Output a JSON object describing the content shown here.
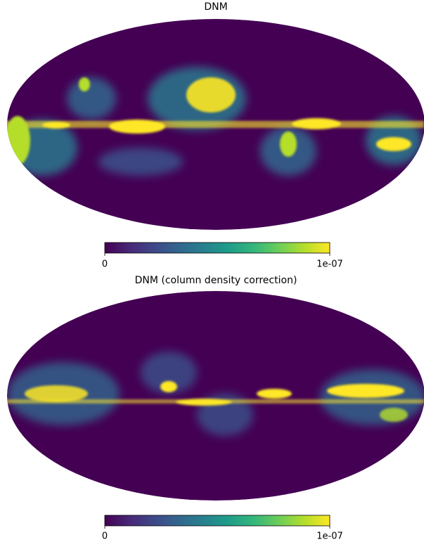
{
  "chart_data": [
    {
      "type": "mollweide",
      "title": "DNM",
      "cmap": "viridis",
      "clim": [
        0,
        1e-07
      ],
      "cticks": [
        0,
        {
          "value": 1e-07,
          "label": "1e-07"
        }
      ]
    },
    {
      "type": "mollweide",
      "title": "DNM (column density correction)",
      "cmap": "viridis",
      "clim": [
        0,
        1e-07
      ],
      "cticks": [
        0,
        {
          "value": 1e-07,
          "label": "1e-07"
        }
      ]
    }
  ]
}
